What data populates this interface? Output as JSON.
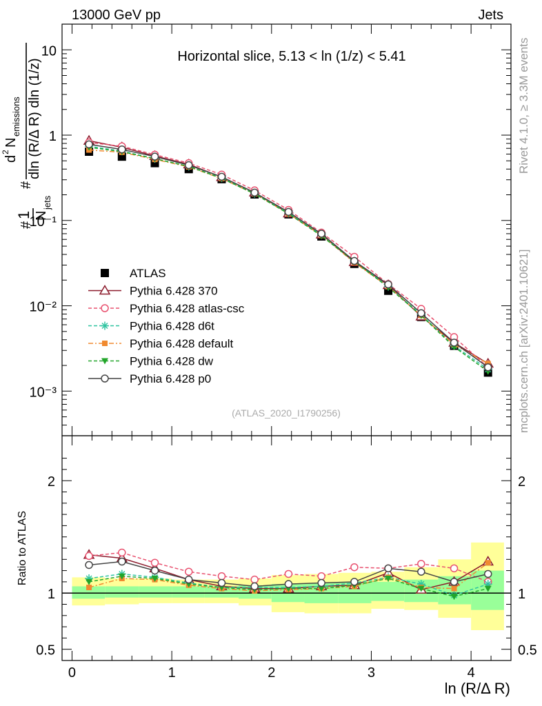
{
  "header": {
    "energy_label": "13000 GeV pp",
    "category_label": "Jets"
  },
  "side_labels": {
    "rivet": "Rivet 4.1.0, ≥ 3.3M events",
    "source": "mcplots.cern.ch [arXiv:2401.10621]"
  },
  "watermark": "(ATLAS_2020_I1790256)",
  "chart_data": [
    {
      "type": "line",
      "panel": "main",
      "title": "Horizontal slice, 5.13 < ln (1/z) < 5.41",
      "ylabel": "1/N_jets d²N_emissions / dln (R/Δ R) dln (1/z)",
      "yscale": "log",
      "ylim": [
        0.0003,
        20
      ],
      "xlim": [
        -0.1,
        4.4
      ],
      "y_tick_labels": [
        "10⁻³",
        "10⁻²",
        "10⁻¹",
        "1",
        "10"
      ],
      "x": [
        0.17,
        0.5,
        0.83,
        1.17,
        1.5,
        1.83,
        2.17,
        2.5,
        2.83,
        3.17,
        3.5,
        3.83,
        4.17
      ],
      "series": [
        {
          "name": "ATLAS",
          "color": "#000000",
          "marker": "square",
          "values": [
            0.64,
            0.56,
            0.47,
            0.4,
            0.305,
            0.202,
            0.118,
            0.065,
            0.031,
            0.015,
            0.0074,
            0.0034,
            0.00165
          ]
        },
        {
          "name": "Pythia 6.428 370",
          "color": "#8b1a2b",
          "marker": "triangle-open",
          "dash": "",
          "values": [
            0.86,
            0.72,
            0.57,
            0.455,
            0.322,
            0.213,
            0.121,
            0.0685,
            0.0325,
            0.0175,
            0.0075,
            0.0037,
            0.0021
          ]
        },
        {
          "name": "Pythia 6.428 atlas-csc",
          "color": "#e8506e",
          "marker": "circle-open",
          "dash": "5,3",
          "values": [
            0.82,
            0.74,
            0.59,
            0.47,
            0.345,
            0.225,
            0.133,
            0.072,
            0.0375,
            0.018,
            0.0092,
            0.0043,
            0.0019
          ]
        },
        {
          "name": "Pythia 6.428 d6t",
          "color": "#2ec4a0",
          "marker": "star",
          "dash": "5,3",
          "values": [
            0.74,
            0.65,
            0.53,
            0.43,
            0.315,
            0.207,
            0.122,
            0.068,
            0.0335,
            0.0168,
            0.0079,
            0.0034,
            0.0018
          ]
        },
        {
          "name": "Pythia 6.428 default",
          "color": "#f08a30",
          "marker": "square-filled",
          "dash": "7,3,2,3",
          "values": [
            0.67,
            0.63,
            0.52,
            0.425,
            0.31,
            0.205,
            0.12,
            0.067,
            0.032,
            0.0168,
            0.0077,
            0.0035,
            0.0021
          ]
        },
        {
          "name": "Pythia 6.428 dw",
          "color": "#22a52a",
          "marker": "triangle-down-filled",
          "dash": "5,3",
          "values": [
            0.72,
            0.64,
            0.53,
            0.43,
            0.312,
            0.205,
            0.12,
            0.066,
            0.033,
            0.0165,
            0.0077,
            0.0033,
            0.0017
          ]
        },
        {
          "name": "Pythia 6.428 p0",
          "color": "#444444",
          "marker": "circle-open",
          "dash": "",
          "values": [
            0.78,
            0.68,
            0.56,
            0.445,
            0.325,
            0.212,
            0.126,
            0.07,
            0.0335,
            0.0178,
            0.0082,
            0.0037,
            0.0019
          ]
        }
      ]
    },
    {
      "type": "line",
      "panel": "ratio",
      "ylabel": "Ratio to ATLAS",
      "xlabel": "ln (R/Δ R)",
      "ylim": [
        0.4,
        2.4
      ],
      "xlim": [
        -0.1,
        4.4
      ],
      "y_tick_labels": [
        "0.5",
        "1",
        "2"
      ],
      "x_tick_labels": [
        "0",
        "1",
        "2",
        "3",
        "4"
      ],
      "bins": [
        0,
        0.33,
        0.67,
        1.0,
        1.33,
        1.67,
        2.0,
        2.33,
        2.67,
        3.0,
        3.33,
        3.67,
        4.0,
        4.33
      ],
      "band_stat_low": [
        0.95,
        0.96,
        0.96,
        0.96,
        0.96,
        0.95,
        0.92,
        0.91,
        0.91,
        0.93,
        0.92,
        0.9,
        0.85
      ],
      "band_stat_high": [
        1.06,
        1.06,
        1.06,
        1.06,
        1.06,
        1.07,
        1.08,
        1.09,
        1.1,
        1.1,
        1.12,
        1.15,
        1.2
      ],
      "band_syst_low": [
        0.89,
        0.9,
        0.91,
        0.91,
        0.91,
        0.89,
        0.83,
        0.82,
        0.82,
        0.86,
        0.85,
        0.78,
        0.67
      ],
      "band_syst_high": [
        1.14,
        1.13,
        1.13,
        1.12,
        1.12,
        1.13,
        1.16,
        1.17,
        1.18,
        1.19,
        1.23,
        1.3,
        1.45
      ],
      "x": [
        0.17,
        0.5,
        0.83,
        1.17,
        1.5,
        1.83,
        2.17,
        2.5,
        2.83,
        3.17,
        3.5,
        3.83,
        4.17
      ],
      "series": [
        {
          "name": "Pythia 6.428 370",
          "color": "#8b1a2b",
          "marker": "triangle-open",
          "dash": "",
          "values": [
            1.34,
            1.31,
            1.22,
            1.12,
            1.06,
            1.04,
            1.04,
            1.06,
            1.07,
            1.18,
            1.03,
            1.1,
            1.28
          ]
        },
        {
          "name": "Pythia 6.428 atlas-csc",
          "color": "#e8506e",
          "marker": "circle-open",
          "dash": "5,3",
          "values": [
            1.33,
            1.36,
            1.27,
            1.19,
            1.15,
            1.12,
            1.17,
            1.15,
            1.23,
            1.22,
            1.26,
            1.22,
            1.1
          ]
        },
        {
          "name": "Pythia 6.428 d6t",
          "color": "#2ec4a0",
          "marker": "star",
          "dash": "5,3",
          "values": [
            1.13,
            1.17,
            1.14,
            1.09,
            1.05,
            1.05,
            1.05,
            1.06,
            1.09,
            1.14,
            1.08,
            0.98,
            1.08
          ]
        },
        {
          "name": "Pythia 6.428 default",
          "color": "#f08a30",
          "marker": "square-filled",
          "dash": "7,3,2,3",
          "values": [
            1.05,
            1.13,
            1.12,
            1.07,
            1.04,
            1.02,
            1.03,
            1.04,
            1.06,
            1.14,
            1.05,
            1.04,
            1.27
          ]
        },
        {
          "name": "Pythia 6.428 dw",
          "color": "#22a52a",
          "marker": "triangle-down-filled",
          "dash": "5,3",
          "values": [
            1.1,
            1.15,
            1.13,
            1.08,
            1.05,
            1.03,
            1.04,
            1.04,
            1.07,
            1.13,
            1.04,
            0.97,
            1.04
          ]
        },
        {
          "name": "Pythia 6.428 p0",
          "color": "#444444",
          "marker": "circle-open",
          "dash": "",
          "values": [
            1.25,
            1.28,
            1.2,
            1.12,
            1.09,
            1.06,
            1.08,
            1.09,
            1.1,
            1.22,
            1.19,
            1.1,
            1.17
          ]
        }
      ]
    }
  ]
}
